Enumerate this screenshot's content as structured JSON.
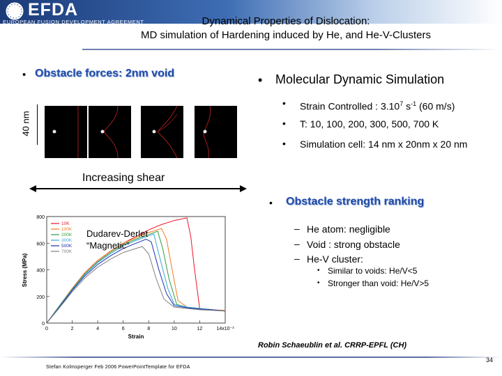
{
  "header": {
    "logo_text": "EFDA",
    "logo_subtitle": "EUROPEAN FUSION DEVELOPMENT AGREEMENT",
    "logo_icon": "eu-stars-icon",
    "band_colors": [
      "#1b3a78",
      "#3e6db4",
      "#bcd0ea"
    ]
  },
  "title": {
    "line1": "Dynamical Properties of Dislocation:",
    "line2": "MD simulation of Hardening induced by He, and He-V-Clusters"
  },
  "left": {
    "bullet": "•",
    "heading": "Obstacle forces: 2nm void",
    "scale_label": "40 nm",
    "shear_label": "Increasing shear"
  },
  "right": {
    "bullet": "•",
    "heading": "Molecular Dynamic Simulation",
    "items": [
      {
        "bullet": "•",
        "prefix": "Strain Controlled : 3.10",
        "sup1": "7",
        "mid": " s",
        "sup2": "-1",
        "suffix": " (60 m/s)"
      },
      {
        "bullet": "•",
        "text": "T: 10, 100, 200, 300, 500, 700 K"
      },
      {
        "bullet": "•",
        "text": "Simulation cell: 14 nm x 20nm x 20 nm"
      }
    ],
    "ranking_heading": "Obstacle strength ranking",
    "ranking": [
      {
        "dash": "–",
        "text": "He atom: negligible"
      },
      {
        "dash": "–",
        "text": "Void : strong obstacle"
      },
      {
        "dash": "–",
        "text": "He-V cluster:"
      }
    ],
    "sub_ranking": [
      {
        "bullet": "•",
        "text": "Similar to voids: He/V<5"
      },
      {
        "bullet": "•",
        "text": "Stronger than void: He/V>5"
      }
    ]
  },
  "credit": "Robin Schaeublin et al. CRRP-EPFL (CH)",
  "footer": {
    "text": "Stefan Kolmsperger Feb 2006 PowerPointTemplate for EFDA",
    "page": "34"
  },
  "accent_color": "#1f4aa8",
  "chart_data": {
    "type": "line",
    "ylabel": "Stress (MPa)",
    "xlabel": "Strain",
    "x_tick_labels": [
      "0",
      "2",
      "4",
      "6",
      "8",
      "10",
      "12",
      "14x10⁻³"
    ],
    "y_tick_labels": [
      "0",
      "200",
      "400",
      "600",
      "800"
    ],
    "xlim": [
      0,
      14
    ],
    "ylim": [
      0,
      800
    ],
    "annotation_line1": "Dudarev-Derlet",
    "annotation_line2": "“Magnetic”",
    "legend_position": "top-left",
    "series": [
      {
        "name": "10K",
        "color": "#e8142a",
        "x": [
          0,
          1,
          2,
          3,
          4,
          5,
          6,
          7,
          8,
          9,
          10,
          11,
          11.3,
          11.6,
          12,
          13,
          14
        ],
        "y": [
          0,
          130,
          260,
          380,
          470,
          540,
          600,
          650,
          700,
          740,
          770,
          790,
          650,
          400,
          110,
          100,
          90
        ]
      },
      {
        "name": "100K",
        "color": "#f07a1e",
        "x": [
          0,
          1,
          2,
          3,
          4,
          5,
          6,
          7,
          8,
          9,
          9.4,
          9.8,
          10.3,
          11,
          12,
          13,
          14
        ],
        "y": [
          0,
          130,
          260,
          380,
          470,
          540,
          600,
          640,
          680,
          710,
          630,
          420,
          170,
          120,
          110,
          100,
          95
        ]
      },
      {
        "name": "200K",
        "color": "#2f9e3c",
        "x": [
          0,
          1,
          2,
          3,
          4,
          5,
          6,
          7,
          8,
          8.7,
          9.1,
          9.6,
          10.2,
          11,
          12,
          13,
          14
        ],
        "y": [
          0,
          130,
          255,
          370,
          460,
          530,
          590,
          630,
          665,
          690,
          560,
          330,
          140,
          120,
          110,
          100,
          90
        ]
      },
      {
        "name": "300K",
        "color": "#3aa6d8",
        "x": [
          0,
          1,
          2,
          3,
          4,
          5,
          6,
          7,
          8,
          8.4,
          8.9,
          9.5,
          10,
          11,
          12,
          13,
          14
        ],
        "y": [
          0,
          125,
          250,
          365,
          455,
          520,
          580,
          620,
          655,
          670,
          480,
          260,
          140,
          120,
          110,
          100,
          90
        ]
      },
      {
        "name": "500K",
        "color": "#1b2fb0",
        "x": [
          0,
          1,
          2,
          3,
          4,
          5,
          6,
          7,
          7.8,
          8.2,
          8.8,
          9.4,
          10,
          11,
          12,
          13,
          14
        ],
        "y": [
          0,
          120,
          245,
          355,
          440,
          505,
          560,
          600,
          630,
          610,
          400,
          220,
          130,
          115,
          105,
          100,
          90
        ]
      },
      {
        "name": "700K",
        "color": "#7f7f7f",
        "x": [
          0,
          1,
          2,
          3,
          4,
          5,
          6,
          7,
          7.5,
          8,
          8.6,
          9.2,
          10,
          11,
          12,
          13,
          14
        ],
        "y": [
          0,
          115,
          235,
          340,
          420,
          480,
          530,
          560,
          575,
          520,
          330,
          180,
          120,
          110,
          100,
          95,
          90
        ]
      }
    ]
  }
}
